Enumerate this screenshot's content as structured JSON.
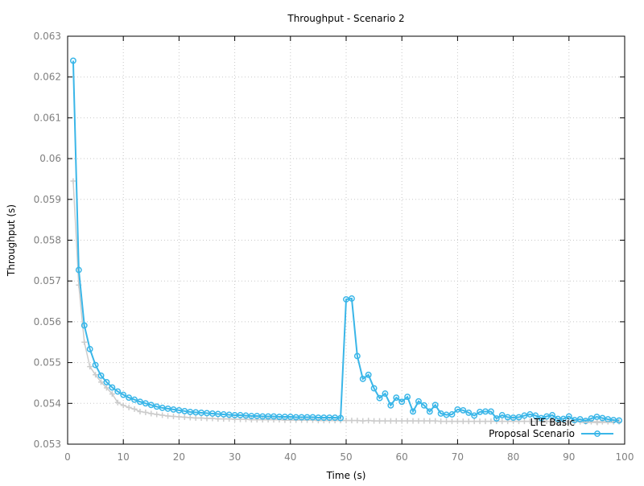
{
  "chart_data": {
    "type": "line",
    "title": "Throughput - Scenario 2",
    "xlabel": "Time (s)",
    "ylabel": "Throughput (s)",
    "xlim": [
      0,
      100
    ],
    "ylim": [
      0.053,
      0.063
    ],
    "xticks": [
      0,
      10,
      20,
      30,
      40,
      50,
      60,
      70,
      80,
      90,
      100
    ],
    "yticks": [
      0.053,
      0.054,
      0.055,
      0.056,
      0.057,
      0.058,
      0.059,
      0.06,
      0.061,
      0.062,
      0.063
    ],
    "xtick_labels": [
      "0",
      "10",
      "20",
      "30",
      "40",
      "50",
      "60",
      "70",
      "80",
      "90",
      "100"
    ],
    "ytick_labels": [
      "0.053",
      "0.054",
      "0.055",
      "0.056",
      "0.057",
      "0.058",
      "0.059",
      "0.06",
      "0.061",
      "0.062",
      "0.063"
    ],
    "grid": true,
    "legend_position": "bottom-right",
    "series": [
      {
        "name": "LTE Basic",
        "color": "#cccccc",
        "marker": "plus",
        "x": [
          1,
          2,
          3,
          4,
          5,
          6,
          7,
          8,
          9,
          10,
          11,
          12,
          13,
          14,
          15,
          16,
          17,
          18,
          19,
          20,
          21,
          22,
          23,
          24,
          25,
          26,
          27,
          28,
          29,
          30,
          31,
          32,
          33,
          34,
          35,
          36,
          37,
          38,
          39,
          40,
          41,
          42,
          43,
          44,
          45,
          46,
          47,
          48,
          49,
          50,
          51,
          52,
          53,
          54,
          55,
          56,
          57,
          58,
          59,
          60,
          61,
          62,
          63,
          64,
          65,
          66,
          67,
          68,
          69,
          70,
          71,
          72,
          73,
          74,
          75,
          76,
          77,
          78,
          79,
          80,
          81,
          82,
          83,
          84,
          85,
          86,
          87,
          88,
          89,
          90,
          91,
          92,
          93,
          94,
          95,
          96,
          97,
          98,
          99
        ],
        "values": [
          0.05945,
          0.0569,
          0.0555,
          0.0549,
          0.0547,
          0.05452,
          0.05438,
          0.05423,
          0.05402,
          0.05395,
          0.0539,
          0.05386,
          0.0538,
          0.05378,
          0.05375,
          0.05373,
          0.05371,
          0.05369,
          0.05368,
          0.05367,
          0.05366,
          0.05365,
          0.05364,
          0.05364,
          0.05363,
          0.05363,
          0.05362,
          0.05362,
          0.05362,
          0.05361,
          0.05361,
          0.05361,
          0.0536,
          0.0536,
          0.0536,
          0.0536,
          0.0536,
          0.0536,
          0.05359,
          0.05359,
          0.05359,
          0.05359,
          0.05359,
          0.05359,
          0.05358,
          0.05358,
          0.05358,
          0.05358,
          0.05358,
          0.05358,
          0.05358,
          0.05358,
          0.05357,
          0.05358,
          0.05357,
          0.05357,
          0.05357,
          0.05357,
          0.05357,
          0.05357,
          0.05357,
          0.05357,
          0.05357,
          0.05357,
          0.05357,
          0.05357,
          0.05356,
          0.05356,
          0.05356,
          0.05356,
          0.05356,
          0.05356,
          0.05356,
          0.05356,
          0.05356,
          0.05356,
          0.05356,
          0.05356,
          0.05356,
          0.05356,
          0.05356,
          0.05356,
          0.05356,
          0.05356,
          0.05356,
          0.05356,
          0.05355,
          0.05355,
          0.05355,
          0.05355,
          0.05355,
          0.05355,
          0.05355,
          0.05355,
          0.05355,
          0.05355,
          0.05355,
          0.05355,
          0.05355
        ]
      },
      {
        "name": "Proposal Scenario",
        "color": "#3ab6e8",
        "marker": "circle",
        "x": [
          1,
          2,
          3,
          4,
          5,
          6,
          7,
          8,
          9,
          10,
          11,
          12,
          13,
          14,
          15,
          16,
          17,
          18,
          19,
          20,
          21,
          22,
          23,
          24,
          25,
          26,
          27,
          28,
          29,
          30,
          31,
          32,
          33,
          34,
          35,
          36,
          37,
          38,
          39,
          40,
          41,
          42,
          43,
          44,
          45,
          46,
          47,
          48,
          49,
          50,
          51,
          52,
          53,
          54,
          55,
          56,
          57,
          58,
          59,
          60,
          61,
          62,
          63,
          64,
          65,
          66,
          67,
          68,
          69,
          70,
          71,
          72,
          73,
          74,
          75,
          76,
          77,
          78,
          79,
          80,
          81,
          82,
          83,
          84,
          85,
          86,
          87,
          88,
          89,
          90,
          91,
          92,
          93,
          94,
          95,
          96,
          97,
          98,
          99
        ],
        "values": [
          0.0624,
          0.05727,
          0.05591,
          0.05533,
          0.05494,
          0.05468,
          0.05452,
          0.05439,
          0.05429,
          0.05421,
          0.05414,
          0.05409,
          0.05404,
          0.054,
          0.05396,
          0.05392,
          0.05389,
          0.05387,
          0.05385,
          0.05383,
          0.05381,
          0.05379,
          0.05378,
          0.05377,
          0.05376,
          0.05375,
          0.05374,
          0.05373,
          0.05372,
          0.05371,
          0.05371,
          0.0537,
          0.05369,
          0.05369,
          0.05368,
          0.05368,
          0.05368,
          0.05367,
          0.05367,
          0.05367,
          0.05366,
          0.05366,
          0.05366,
          0.05366,
          0.05365,
          0.05365,
          0.05365,
          0.05365,
          0.05364,
          0.05655,
          0.05657,
          0.05516,
          0.0546,
          0.0547,
          0.05437,
          0.05413,
          0.05424,
          0.05395,
          0.05414,
          0.05404,
          0.05416,
          0.0538,
          0.05405,
          0.05395,
          0.0538,
          0.05396,
          0.05375,
          0.05372,
          0.05373,
          0.05385,
          0.05383,
          0.05377,
          0.0537,
          0.05379,
          0.0538,
          0.0538,
          0.05363,
          0.05371,
          0.05366,
          0.05365,
          0.05366,
          0.0537,
          0.05373,
          0.0537,
          0.05364,
          0.05368,
          0.05371,
          0.05362,
          0.05362,
          0.05368,
          0.05359,
          0.05361,
          0.05357,
          0.05363,
          0.05367,
          0.05364,
          0.05361,
          0.05359,
          0.05358
        ]
      }
    ]
  }
}
